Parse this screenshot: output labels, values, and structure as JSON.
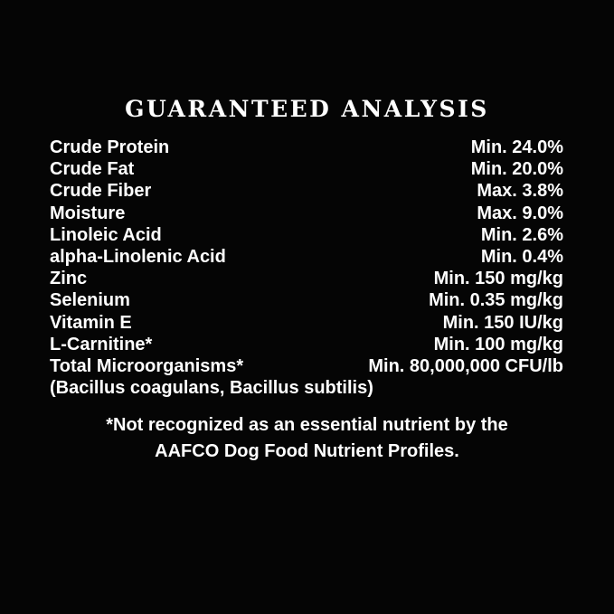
{
  "colors": {
    "background": "#050505",
    "text": "#ffffff"
  },
  "title": "GUARANTEED ANALYSIS",
  "analysis": {
    "rows": [
      {
        "label": "Crude Protein",
        "value": "Min. 24.0%"
      },
      {
        "label": "Crude Fat",
        "value": "Min. 20.0%"
      },
      {
        "label": "Crude Fiber",
        "value": "Max. 3.8%"
      },
      {
        "label": "Moisture",
        "value": "Max. 9.0%"
      },
      {
        "label": "Linoleic Acid",
        "value": "Min. 2.6%"
      },
      {
        "label": "alpha-Linolenic Acid",
        "value": "Min. 0.4%"
      },
      {
        "label": "Zinc",
        "value": "Min. 150 mg/kg"
      },
      {
        "label": "Selenium",
        "value": "Min. 0.35 mg/kg"
      },
      {
        "label": "Vitamin E",
        "value": "Min. 150 IU/kg"
      },
      {
        "label": "L-Carnitine*",
        "value": "Min. 100 mg/kg"
      },
      {
        "label": "Total Microorganisms*",
        "value": "Min. 80,000,000 CFU/lb"
      }
    ],
    "continuation": "(Bacillus coagulans, Bacillus subtilis)"
  },
  "footnote": {
    "line1": "*Not recognized as an essential nutrient by the",
    "line2": "AAFCO Dog Food Nutrient Profiles."
  }
}
